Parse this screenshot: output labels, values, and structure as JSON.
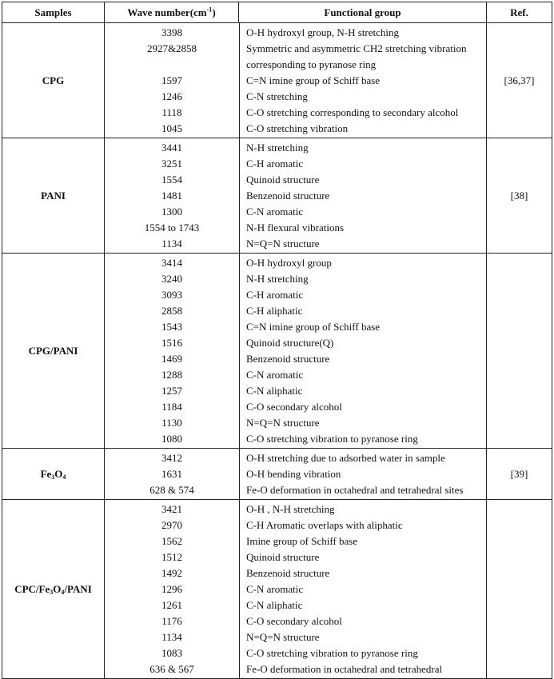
{
  "header": {
    "samples": "Samples",
    "wave_number": "Wave number(cm",
    "wave_unit_sup": "-1",
    "wave_close": ")",
    "functional_group": "Functional group",
    "ref": "Ref."
  },
  "rows": [
    {
      "sample": "CPG",
      "ref": "[36,37]",
      "items": [
        {
          "wave": "3398",
          "group": "O-H hydroxyl group, N-H stretching"
        },
        {
          "wave": "2927&2858",
          "group": "Symmetric and asymmetric CH2 stretching vibration corresponding to pyranose ring"
        },
        {
          "wave": "1597",
          "group": "C=N imine group of Schiff base"
        },
        {
          "wave": "1246",
          "group": "C-N stretching"
        },
        {
          "wave": "1118",
          "group": "C-O stretching corresponding to secondary alcohol"
        },
        {
          "wave": "1045",
          "group": "C-O stretching vibration"
        }
      ]
    },
    {
      "sample": "PANI",
      "ref": "[38]",
      "items": [
        {
          "wave": "3441",
          "group": "N-H stretching"
        },
        {
          "wave": "3251",
          "group": "C-H aromatic"
        },
        {
          "wave": "1554",
          "group": "Quinoid structure"
        },
        {
          "wave": "1481",
          "group": "Benzenoid structure"
        },
        {
          "wave": "1300",
          "group": "C-N aromatic"
        },
        {
          "wave": "1554 to 1743",
          "group": "N-H flexural vibrations"
        },
        {
          "wave": "1134",
          "group": "N=Q=N structure"
        }
      ]
    },
    {
      "sample": "CPG/PANI",
      "ref": "",
      "items": [
        {
          "wave": "3414",
          "group": "O-H hydroxyl group"
        },
        {
          "wave": "3240",
          "group": "N-H stretching"
        },
        {
          "wave": "3093",
          "group": "C-H aromatic"
        },
        {
          "wave": "2858",
          "group": "C-H aliphatic"
        },
        {
          "wave": "1543",
          "group": "C=N imine group of Schiff base"
        },
        {
          "wave": "1516",
          "group": "Quinoid structure(Q)"
        },
        {
          "wave": "1469",
          "group": "Benzenoid structure"
        },
        {
          "wave": "1288",
          "group": "C-N aromatic"
        },
        {
          "wave": "1257",
          "group": "C-N aliphatic"
        },
        {
          "wave": "1184",
          "group": "C-O secondary alcohol"
        },
        {
          "wave": "1130",
          "group": "N=Q=N structure"
        },
        {
          "wave": "1080",
          "group": "C-O stretching vibration to pyranose ring"
        }
      ]
    },
    {
      "sample_parts": [
        "Fe",
        "3",
        "O",
        "4"
      ],
      "ref": "[39]",
      "items": [
        {
          "wave": "3412",
          "group": "O-H stretching due to adsorbed water in sample"
        },
        {
          "wave": "1631",
          "group": "O-H bending vibration"
        },
        {
          "wave": "628 & 574",
          "group": "Fe-O deformation in octahedral and tetrahedral sites"
        }
      ]
    },
    {
      "sample_parts": [
        "CPC/Fe",
        "3",
        "O",
        "4",
        "/PANI"
      ],
      "ref": "",
      "items": [
        {
          "wave": "3421",
          "group": "O-H , N-H stretching"
        },
        {
          "wave": "2970",
          "group": "C-H Aromatic overlaps with aliphatic"
        },
        {
          "wave": "1562",
          "group": "Imine group of Schiff base"
        },
        {
          "wave": "1512",
          "group": "Quinoid structure"
        },
        {
          "wave": "1492",
          "group": "Benzenoid structure"
        },
        {
          "wave": "1296",
          "group": "C-N aromatic"
        },
        {
          "wave": "1261",
          "group": "C-N aliphatic"
        },
        {
          "wave": "1176",
          "group": "C-O secondary alcohol"
        },
        {
          "wave": "1134",
          "group": "N=Q=N structure"
        },
        {
          "wave": "1083",
          "group": "C-O stretching vibration to pyranose ring"
        },
        {
          "wave": "636 & 567",
          "group": "Fe-O deformation in octahedral and tetrahedral"
        }
      ]
    }
  ]
}
